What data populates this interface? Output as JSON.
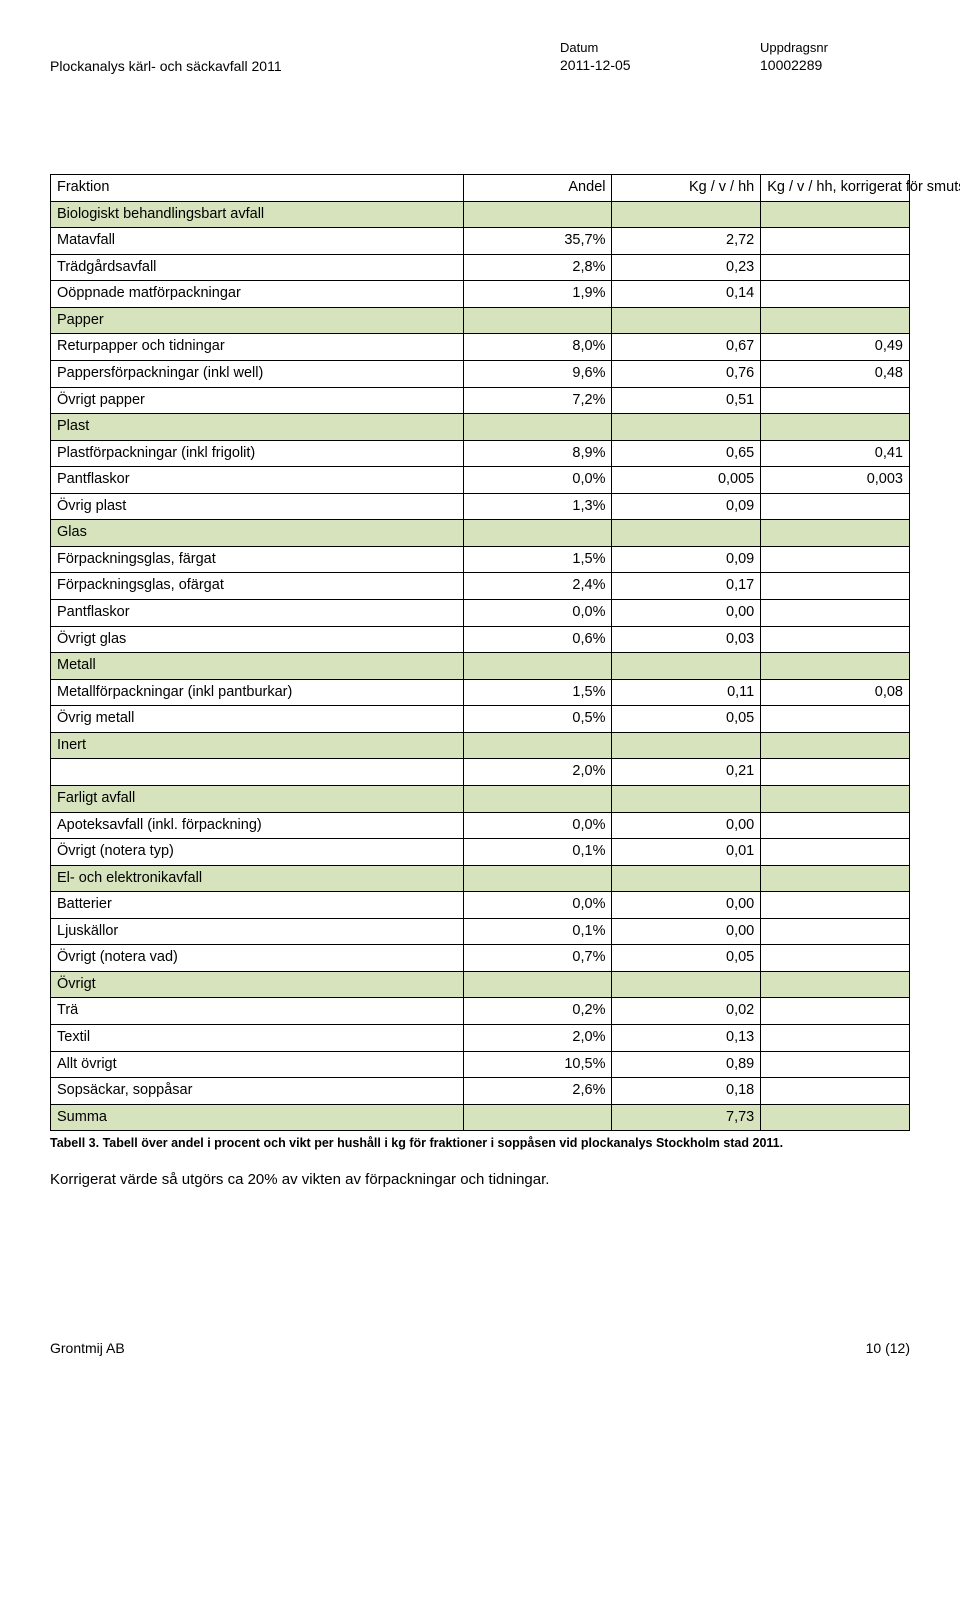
{
  "header": {
    "leftTitle": "Plockanalys kärl- och säckavfall 2011",
    "midLabel": "Datum",
    "midValue": "2011-12-05",
    "rightLabel": "Uppdragsnr",
    "rightValue": "10002289"
  },
  "table": {
    "columns": {
      "c0": "Fraktion",
      "c1": "Andel",
      "c2": "Kg / v / hh",
      "c3": "Kg / v / hh, korrigerat för smuts och fukt"
    },
    "colors": {
      "sectionBg": "#d6e3bc",
      "border": "#000000",
      "pageBg": "#ffffff"
    },
    "rows": [
      {
        "type": "section",
        "label": "Biologiskt behandlingsbart avfall"
      },
      {
        "type": "data",
        "label": "Matavfall",
        "c1": "35,7%",
        "c2": "2,72",
        "c3": ""
      },
      {
        "type": "data",
        "label": "Trädgårdsavfall",
        "c1": "2,8%",
        "c2": "0,23",
        "c3": ""
      },
      {
        "type": "data",
        "label": "Oöppnade matförpackningar",
        "c1": "1,9%",
        "c2": "0,14",
        "c3": ""
      },
      {
        "type": "section",
        "label": "Papper"
      },
      {
        "type": "data",
        "label": "Returpapper och tidningar",
        "c1": "8,0%",
        "c2": "0,67",
        "c3": "0,49"
      },
      {
        "type": "data",
        "label": "Pappersförpackningar (inkl well)",
        "c1": "9,6%",
        "c2": "0,76",
        "c3": "0,48"
      },
      {
        "type": "data",
        "label": "Övrigt papper",
        "c1": "7,2%",
        "c2": "0,51",
        "c3": ""
      },
      {
        "type": "section",
        "label": "Plast"
      },
      {
        "type": "data",
        "label": "Plastförpackningar (inkl frigolit)",
        "c1": "8,9%",
        "c2": "0,65",
        "c3": "0,41"
      },
      {
        "type": "data",
        "label": "Pantflaskor",
        "c1": "0,0%",
        "c2": "0,005",
        "c3": "0,003"
      },
      {
        "type": "data",
        "label": "Övrig plast",
        "c1": "1,3%",
        "c2": "0,09",
        "c3": ""
      },
      {
        "type": "section",
        "label": "Glas"
      },
      {
        "type": "data",
        "label": "Förpackningsglas, färgat",
        "c1": "1,5%",
        "c2": "0,09",
        "c3": ""
      },
      {
        "type": "data",
        "label": "Förpackningsglas, ofärgat",
        "c1": "2,4%",
        "c2": "0,17",
        "c3": ""
      },
      {
        "type": "data",
        "label": "Pantflaskor",
        "c1": "0,0%",
        "c2": "0,00",
        "c3": ""
      },
      {
        "type": "data",
        "label": "Övrigt glas",
        "c1": "0,6%",
        "c2": "0,03",
        "c3": ""
      },
      {
        "type": "section",
        "label": "Metall"
      },
      {
        "type": "data",
        "label": "Metallförpackningar (inkl pantburkar)",
        "c1": "1,5%",
        "c2": "0,11",
        "c3": "0,08"
      },
      {
        "type": "data",
        "label": "Övrig metall",
        "c1": "0,5%",
        "c2": "0,05",
        "c3": ""
      },
      {
        "type": "section",
        "label": "Inert"
      },
      {
        "type": "data",
        "label": "",
        "c1": "2,0%",
        "c2": "0,21",
        "c3": ""
      },
      {
        "type": "section",
        "label": "Farligt avfall"
      },
      {
        "type": "data",
        "label": "Apoteksavfall (inkl. förpackning)",
        "c1": "0,0%",
        "c2": "0,00",
        "c3": ""
      },
      {
        "type": "data",
        "label": "Övrigt (notera typ)",
        "c1": "0,1%",
        "c2": "0,01",
        "c3": ""
      },
      {
        "type": "section",
        "label": "El- och elektronikavfall"
      },
      {
        "type": "data",
        "label": "Batterier",
        "c1": "0,0%",
        "c2": "0,00",
        "c3": ""
      },
      {
        "type": "data",
        "label": "Ljuskällor",
        "c1": "0,1%",
        "c2": "0,00",
        "c3": ""
      },
      {
        "type": "data",
        "label": "Övrigt (notera vad)",
        "c1": "0,7%",
        "c2": "0,05",
        "c3": ""
      },
      {
        "type": "section",
        "label": "Övrigt"
      },
      {
        "type": "data",
        "label": "Trä",
        "c1": "0,2%",
        "c2": "0,02",
        "c3": ""
      },
      {
        "type": "data",
        "label": "Textil",
        "c1": "2,0%",
        "c2": "0,13",
        "c3": ""
      },
      {
        "type": "data",
        "label": "Allt övrigt",
        "c1": "10,5%",
        "c2": "0,89",
        "c3": ""
      },
      {
        "type": "data",
        "label": "Sopsäckar, soppåsar",
        "c1": "2,6%",
        "c2": "0,18",
        "c3": ""
      },
      {
        "type": "section",
        "label": "Summa",
        "c2": "7,73"
      }
    ]
  },
  "caption": "Tabell 3. Tabell över andel i procent och vikt per hushåll i kg för fraktioner i soppåsen vid plockanalys Stockholm stad 2011.",
  "bodyText": "Korrigerat värde så utgörs ca 20% av vikten av förpackningar och tidningar.",
  "footer": {
    "left": "Grontmij AB",
    "right": "10 (12)"
  }
}
